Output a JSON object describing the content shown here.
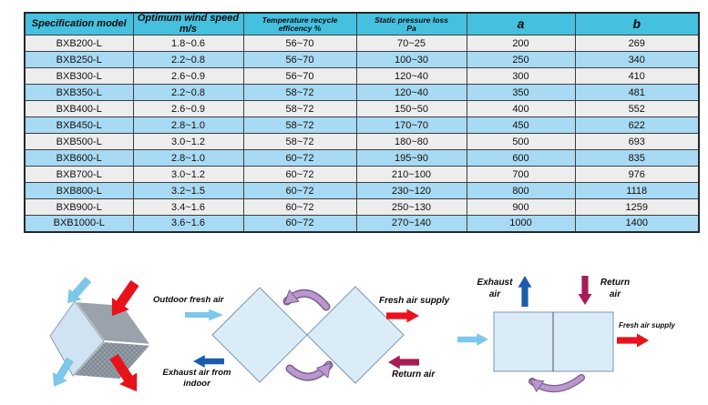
{
  "table": {
    "columns": [
      {
        "label": "Specification model"
      },
      {
        "label": "Optimum wind speed\nm/s"
      },
      {
        "label": "Temperature recycle\nefficency %"
      },
      {
        "label": "Static pressure loss\nPa"
      },
      {
        "label": "a"
      },
      {
        "label": "b"
      }
    ],
    "rows": [
      [
        "BXB200-L",
        "1.8~0.6",
        "56~70",
        "70~25",
        "200",
        "269"
      ],
      [
        "BXB250-L",
        "2.2~0.8",
        "56~70",
        "100~30",
        "250",
        "340"
      ],
      [
        "BXB300-L",
        "2.6~0.9",
        "56~70",
        "120~40",
        "300",
        "410"
      ],
      [
        "BXB350-L",
        "2.2~0.8",
        "58~72",
        "120~40",
        "350",
        "481"
      ],
      [
        "BXB400-L",
        "2.6~0.9",
        "58~72",
        "150~50",
        "400",
        "552"
      ],
      [
        "BXB450-L",
        "2.8~1.0",
        "58~72",
        "170~70",
        "450",
        "622"
      ],
      [
        "BXB500-L",
        "3.0~1.2",
        "58~72",
        "180~80",
        "500",
        "693"
      ],
      [
        "BXB600-L",
        "2.8~1.0",
        "60~72",
        "195~90",
        "600",
        "835"
      ],
      [
        "BXB700-L",
        "3.0~1.2",
        "60~72",
        "210~100",
        "700",
        "976"
      ],
      [
        "BXB800-L",
        "3.2~1.5",
        "60~72",
        "230~120",
        "800",
        "1118"
      ],
      [
        "BXB900-L",
        "3.4~1.6",
        "60~72",
        "250~130",
        "900",
        "1259"
      ],
      [
        "BXB1000-L",
        "3.6~1.6",
        "60~72",
        "270~140",
        "1000",
        "1400"
      ]
    ]
  },
  "diagrams": {
    "middle": {
      "outdoor_fresh_air": "Outdoor fresh air",
      "exhaust_air_from_indoor": "Exhaust air from\nindoor",
      "fresh_air_supply": "Fresh air supply",
      "return_air": "Return air"
    },
    "right": {
      "exhaust_air": "Exhaust\nair",
      "return_air": "Return\nair",
      "fresh_air_supply": "Fresh air supply"
    }
  },
  "colors": {
    "header_bg": "#45c0de",
    "row_blue": "#a9daf3",
    "row_gray": "#ededee",
    "arrow_light_blue": "#7cc7ea",
    "arrow_red": "#e8121b",
    "arrow_dark_blue": "#1b5cad",
    "arrow_magenta": "#a61d56",
    "arrow_purple": "#bb98cc",
    "panel_fill": "#d9ecf8"
  }
}
